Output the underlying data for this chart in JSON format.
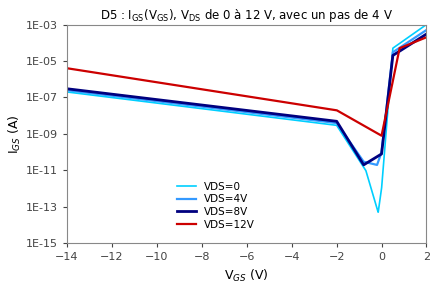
{
  "title": "D5 : I$_{GS}$(V$_{GS}$), V$_{DS}$ de 0 à 12 V, avec un pas de 4 V",
  "xlabel": "V$_{GS}$ (V)",
  "ylabel": "I$_{GS}$ (A)",
  "xlim": [
    -14,
    2
  ],
  "ylim": [
    1e-15,
    0.001
  ],
  "xticks": [
    -14,
    -12,
    -10,
    -8,
    -6,
    -4,
    -2,
    0,
    2
  ],
  "yticks_values": [
    1e-15,
    1e-13,
    1e-11,
    1e-09,
    1e-07,
    1e-05,
    0.001
  ],
  "yticks_labels": [
    "1E-15",
    "1E-13",
    "1E-11",
    "1E-09",
    "1E-07",
    "1E-05",
    "1E-03"
  ],
  "colors": {
    "VDS0": "#00CFFF",
    "VDS4": "#3399FF",
    "VDS8": "#00007F",
    "VDS12": "#CC0000"
  },
  "linewidths": {
    "VDS0": 1.2,
    "VDS4": 1.6,
    "VDS8": 2.0,
    "VDS12": 1.6
  },
  "legend": [
    "VDS=0",
    "VDS=4V",
    "VDS=8V",
    "VDS=12V"
  ],
  "background": "#ffffff"
}
